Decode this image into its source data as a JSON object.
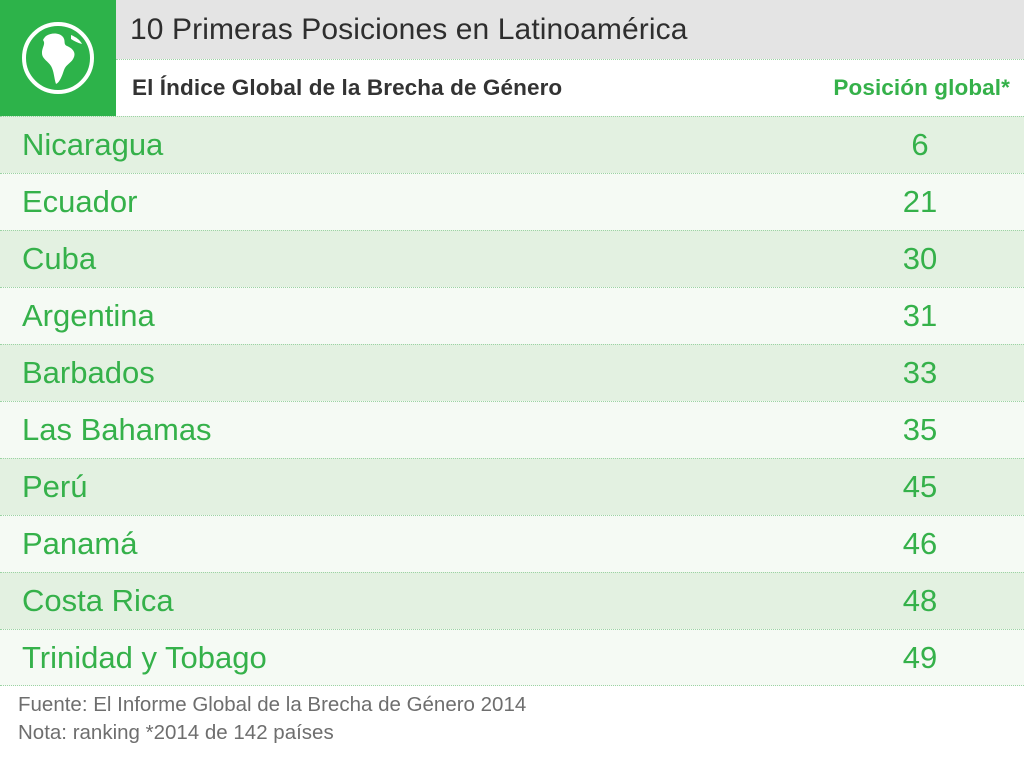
{
  "colors": {
    "accent_green": "#2db34a",
    "text_green": "#35b14a",
    "row_shade": "#e3f1e1",
    "row_plain": "#f5faf4"
  },
  "header": {
    "icon": "globe-americas-icon",
    "title": "10 Primeras Posiciones en Latinoamérica",
    "subtitle": "El Índice Global de la Brecha de Género",
    "column_label": "Posición global*"
  },
  "chart_data": {
    "type": "table",
    "title": "10 Primeras Posiciones en Latinoamérica",
    "subtitle": "El Índice Global de la Brecha de Género",
    "columns": [
      "",
      "Posición global*"
    ],
    "rows": [
      {
        "country": "Nicaragua",
        "rank": "6"
      },
      {
        "country": "Ecuador",
        "rank": "21"
      },
      {
        "country": "Cuba",
        "rank": "30"
      },
      {
        "country": "Argentina",
        "rank": "31"
      },
      {
        "country": "Barbados",
        "rank": "33"
      },
      {
        "country": "Las Bahamas",
        "rank": "35"
      },
      {
        "country": "Perú",
        "rank": "45"
      },
      {
        "country": "Panamá",
        "rank": "46"
      },
      {
        "country": "Costa Rica",
        "rank": "48"
      },
      {
        "country": "Trinidad y Tobago",
        "rank": "49"
      }
    ]
  },
  "footer": {
    "source": "Fuente: El Informe Global de la Brecha de Género 2014",
    "note": "Nota: ranking *2014 de 142 países"
  }
}
